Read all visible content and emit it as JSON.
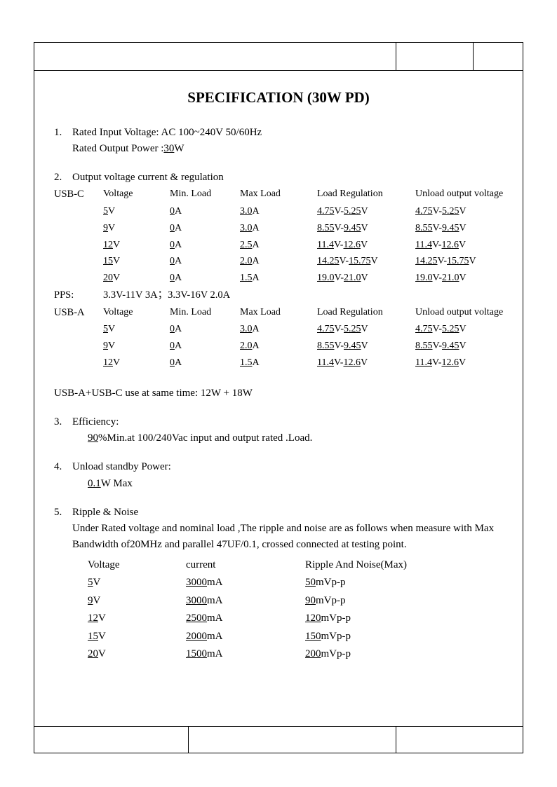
{
  "title": "SPECIFICATION (30W PD)",
  "colors": {
    "text": "#000000",
    "border": "#000000",
    "background": "#ffffff"
  },
  "typography": {
    "font_family": "Times New Roman",
    "title_fontsize_pt": 16,
    "body_fontsize_pt": 11
  },
  "section1": {
    "num": "1.",
    "line1_label": "Rated Input Voltage: ",
    "line1_value": "AC 100~240V 50/60Hz",
    "line2_label": "Rated Output Power :",
    "line2_value": "30",
    "line2_unit": "W"
  },
  "section2": {
    "num": "2.",
    "heading": "Output voltage current & regulation",
    "headers": {
      "port": "",
      "voltage": "Voltage",
      "min_load": "Min. Load",
      "max_load": "Max Load",
      "load_reg": "Load Regulation",
      "unload": "Unload output voltage"
    },
    "usb_c_label": "USB-C",
    "usb_c_rows": [
      {
        "v": "5",
        "vunit": "V",
        "min": "0",
        "minunit": "A",
        "max": "3.0",
        "maxunit": "A",
        "lr_lo": "4.75",
        "lr_hi": "5.25",
        "lrunit": "V",
        "ul_lo": "4.75",
        "ul_hi": "5.25",
        "ulunit": "V"
      },
      {
        "v": "9",
        "vunit": "V",
        "min": "0",
        "minunit": "A",
        "max": "3.0",
        "maxunit": "A",
        "lr_lo": "8.55",
        "lr_hi": "9.45",
        "lrunit": "V",
        "ul_lo": "8.55",
        "ul_hi": "9.45",
        "ulunit": "V"
      },
      {
        "v": "12",
        "vunit": "V",
        "min": "0",
        "minunit": "A",
        "max": "2.5",
        "maxunit": "A",
        "lr_lo": "11.4",
        "lr_hi": "12.6",
        "lrunit": "V",
        "ul_lo": "11.4",
        "ul_hi": "12.6",
        "ulunit": "V"
      },
      {
        "v": "15",
        "vunit": "V",
        "min": "0",
        "minunit": "A",
        "max": "2.0",
        "maxunit": "A",
        "lr_lo": "14.25",
        "lr_hi": "15.75",
        "lrunit": "V",
        "ul_lo": "14.25",
        "ul_hi": "15.75",
        "ulunit": "V"
      },
      {
        "v": "20",
        "vunit": "V",
        "min": "0",
        "minunit": "A",
        "max": "1.5",
        "maxunit": "A",
        "lr_lo": "19.0",
        "lr_hi": "21.0",
        "lrunit": "V",
        "ul_lo": "19.0",
        "ul_hi": "21.0",
        "ulunit": "V"
      }
    ],
    "pps_label": "PPS:",
    "pps_text": "3.3V-11V 3A；3.3V-16V 2.0A",
    "usb_a_label": "USB-A",
    "usb_a_rows": [
      {
        "v": "5",
        "vunit": "V",
        "min": "0",
        "minunit": "A",
        "max": "3.0",
        "maxunit": "A",
        "lr_lo": "4.75",
        "lr_hi": "5.25",
        "lrunit": "V",
        "ul_lo": "4.75",
        "ul_hi": "5.25",
        "ulunit": "V"
      },
      {
        "v": "9",
        "vunit": "V",
        "min": "0",
        "minunit": "A",
        "max": "2.0",
        "maxunit": "A",
        "lr_lo": "8.55",
        "lr_hi": "9.45",
        "lrunit": "V",
        "ul_lo": "8.55",
        "ul_hi": "9.45",
        "ulunit": "V"
      },
      {
        "v": "12",
        "vunit": "V",
        "min": "0",
        "minunit": "A",
        "max": "1.5",
        "maxunit": "A",
        "lr_lo": "11.4",
        "lr_hi": "12.6",
        "lrunit": "V",
        "ul_lo": "11.4",
        "ul_hi": "12.6",
        "ulunit": "V"
      }
    ],
    "combo_text": "USB-A+USB-C use at same time: 12W + 18W"
  },
  "section3": {
    "num": "3.",
    "heading": "Efficiency:",
    "value": "90",
    "text_after": "%Min.at 100/240Vac input and output rated .Load."
  },
  "section4": {
    "num": "4.",
    "heading": "Unload standby Power:",
    "value": "0.1",
    "unit": "W Max"
  },
  "section5": {
    "num": "5.",
    "heading": "Ripple & Noise",
    "desc1": "Under Rated voltage and nominal load ,The ripple and noise are as follows when measure with Max",
    "desc2": "Bandwidth of20MHz and parallel 47UF/0.1, crossed connected at testing point.",
    "headers": {
      "voltage": "Voltage",
      "current": "current",
      "ripple": "Ripple And Noise(Max)"
    },
    "rows": [
      {
        "v": "5",
        "vunit": "V",
        "c": "3000",
        "cunit": "mA",
        "r": "50",
        "runit": "mVp-p"
      },
      {
        "v": "9",
        "vunit": "V",
        "c": "3000",
        "cunit": "mA",
        "r": "90",
        "runit": "mVp-p"
      },
      {
        "v": "12",
        "vunit": "V",
        "c": "2500",
        "cunit": "mA",
        "r": "120",
        "runit": "mVp-p"
      },
      {
        "v": "15",
        "vunit": "V",
        "c": "2000",
        "cunit": "mA",
        "r": "150",
        "runit": "mVp-p"
      },
      {
        "v": "20",
        "vunit": "V",
        "c": "1500",
        "cunit": "mA",
        "r": "200",
        "runit": "mVp-p"
      }
    ]
  }
}
